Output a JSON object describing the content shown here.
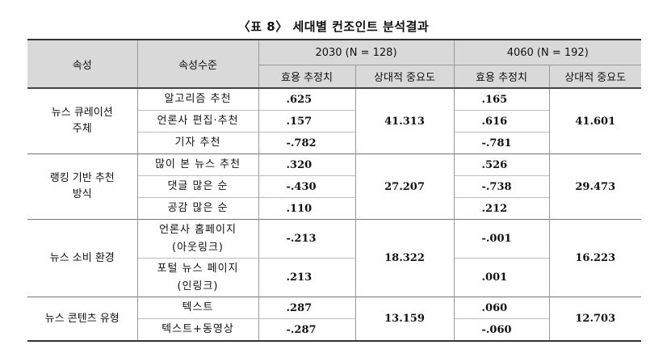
{
  "caption": "〈표 8〉 세대별 컨조인트 분석결과",
  "header": {
    "attr": "속성",
    "level": "속성수준",
    "group_2030": "2030 (N = 128)",
    "group_4060": "4060 (N = 192)",
    "utility": "효용 추정치",
    "importance": "상대적 중요도"
  },
  "groups": [
    {
      "attr": [
        "뉴스 큐레이션",
        "주체"
      ],
      "imp_2030": "41.313",
      "imp_4060": "41.601",
      "rows": [
        {
          "level": [
            "알고리즘 추천"
          ],
          "u2030": ".625",
          "u4060": ".165"
        },
        {
          "level": [
            "언론사 편집·추천"
          ],
          "u2030": ".157",
          "u4060": ".616"
        },
        {
          "level": [
            "기자 추천"
          ],
          "u2030": "-.782",
          "u4060": "-.781"
        }
      ]
    },
    {
      "attr": [
        "랭킹 기반 추천",
        "방식"
      ],
      "imp_2030": "27.207",
      "imp_4060": "29.473",
      "rows": [
        {
          "level": [
            "많이 본 뉴스 추천"
          ],
          "u2030": ".320",
          "u4060": ".526"
        },
        {
          "level": [
            "댓글 많은 순"
          ],
          "u2030": "-.430",
          "u4060": "-.738"
        },
        {
          "level": [
            "공감 많은 순"
          ],
          "u2030": ".110",
          "u4060": ".212"
        }
      ]
    },
    {
      "attr": [
        "뉴스 소비 환경"
      ],
      "imp_2030": "18.322",
      "imp_4060": "16.223",
      "rows": [
        {
          "level": [
            "언론사 홈페이지",
            "(아웃링크)"
          ],
          "u2030": "-.213",
          "u4060": "-.001"
        },
        {
          "level": [
            "포털 뉴스 페이지",
            "(인링크)"
          ],
          "u2030": ".213",
          "u4060": ".001"
        }
      ]
    },
    {
      "attr": [
        "뉴스 콘텐츠 유형"
      ],
      "imp_2030": "13.159",
      "imp_4060": "12.703",
      "rows": [
        {
          "level": [
            "텍스트"
          ],
          "u2030": ".287",
          "u4060": ".060"
        },
        {
          "level": [
            "텍스트+동영상"
          ],
          "u2030": "-.287",
          "u4060": "-.060"
        }
      ]
    }
  ]
}
